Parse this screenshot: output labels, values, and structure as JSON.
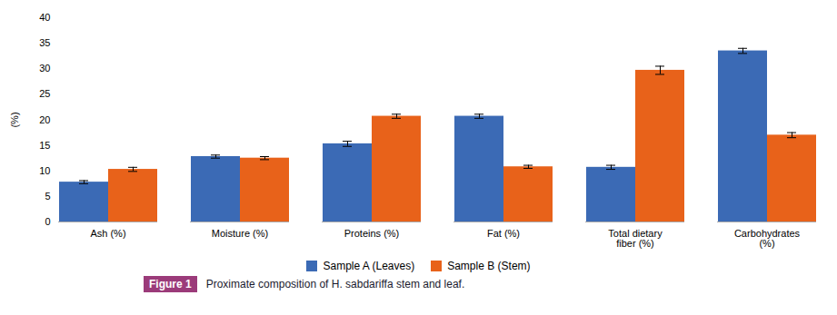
{
  "chart_data": {
    "type": "bar",
    "categories": [
      "Ash (%)",
      "Moisture (%)",
      "Proteins (%)",
      "Fat (%)",
      "Total dietary\nfiber (%)",
      "Carbohydrates\n(%)"
    ],
    "series": [
      {
        "name": "Sample A (Leaves)",
        "color": "#3B6AB5",
        "values": [
          7.8,
          12.8,
          15.3,
          20.7,
          10.7,
          33.5
        ],
        "errors": [
          0.3,
          0.3,
          0.5,
          0.4,
          0.4,
          0.5
        ]
      },
      {
        "name": "Sample B (Stem)",
        "color": "#E8621A",
        "values": [
          10.3,
          12.5,
          20.7,
          10.8,
          29.7,
          17.0
        ],
        "errors": [
          0.4,
          0.3,
          0.4,
          0.3,
          0.8,
          0.5
        ]
      }
    ],
    "ylabel": "(%)",
    "ylim": [
      0,
      40
    ],
    "yticks": [
      0,
      5,
      10,
      15,
      20,
      25,
      30,
      35,
      40
    ],
    "grid": false,
    "legend": "bottom",
    "caption": {
      "label": "Figure 1",
      "label_background": "#9B3B7A",
      "text": "Proximate composition of H. sabdariffa stem and leaf.",
      "color": "#1A1A2E"
    }
  }
}
